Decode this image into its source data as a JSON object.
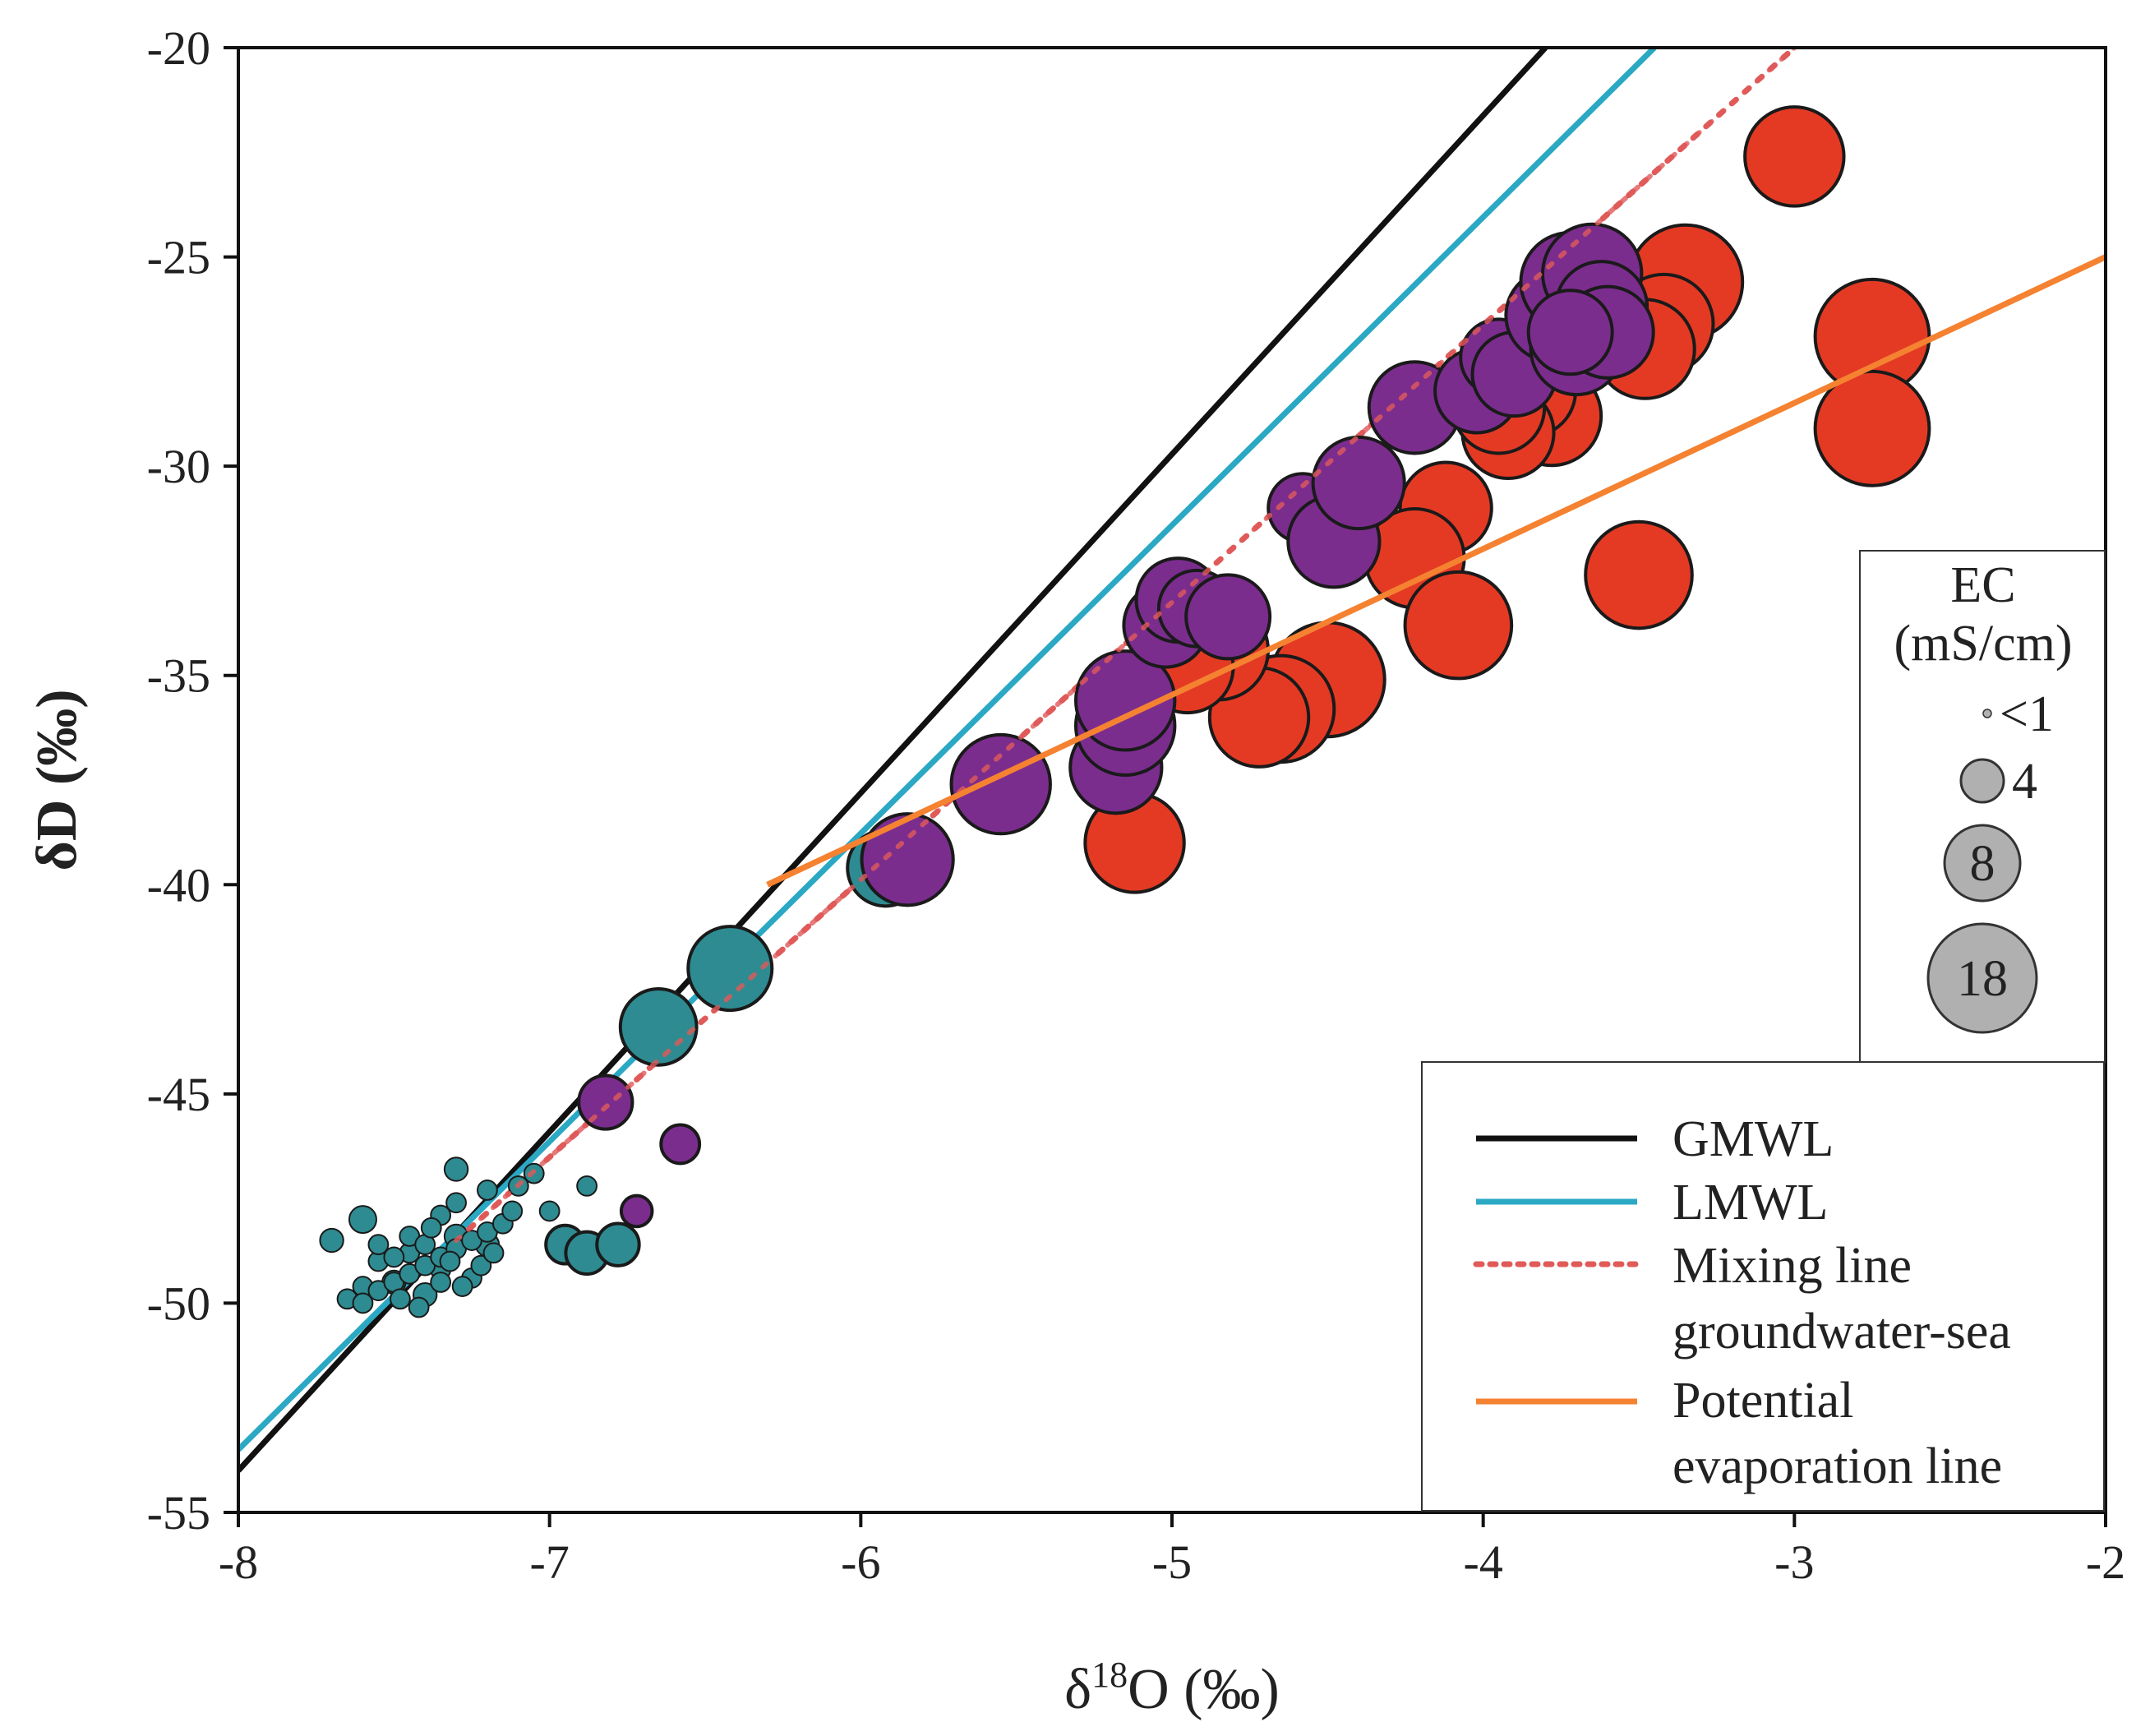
{
  "chart_data": {
    "type": "scatter",
    "xlabel": "δ18O (‰)",
    "ylabel": "δD (‰)",
    "xlim": [
      -8,
      -2
    ],
    "ylim": [
      -55,
      -20
    ],
    "x_ticks": [
      "-8",
      "-7",
      "-6",
      "-5",
      "-4",
      "-3",
      "-2"
    ],
    "y_ticks": [
      "-20",
      "-25",
      "-30",
      "-35",
      "-40",
      "-45",
      "-50",
      "-55"
    ],
    "grid": false,
    "lines": [
      {
        "name": "GMWL",
        "style": "solid",
        "color": "#111111",
        "points": [
          [
            -8,
            -54
          ],
          [
            -3.8,
            -20
          ]
        ]
      },
      {
        "name": "LMWL",
        "style": "solid",
        "color": "#2aa8c4",
        "points": [
          [
            -8,
            -53.5
          ],
          [
            -3.45,
            -20
          ]
        ]
      },
      {
        "name": "Mixing line\ngroundwater-sea",
        "style": "dotted",
        "color": "#e05a5a",
        "points": [
          [
            -7.3,
            -48.5
          ],
          [
            -3,
            -20
          ]
        ]
      },
      {
        "name": "Potential\nevaporation line",
        "style": "solid",
        "color": "#f58231",
        "points": [
          [
            -6.3,
            -40
          ],
          [
            -2,
            -25
          ]
        ]
      }
    ],
    "size_legend": {
      "title_line1": "EC",
      "title_line2": "(mS/cm)",
      "entries": [
        {
          "label": "<1",
          "size": 1
        },
        {
          "label": "4",
          "size": 4
        },
        {
          "label": "8",
          "size": 8
        },
        {
          "label": "18",
          "size": 18
        }
      ]
    },
    "series": [
      {
        "color": "#2e8b91",
        "points": [
          [
            -7.7,
            -48.5,
            2
          ],
          [
            -7.6,
            -48,
            2.5
          ],
          [
            -7.55,
            -49,
            1.5
          ],
          [
            -7.5,
            -49.5,
            2
          ],
          [
            -7.45,
            -48.8,
            1.5
          ],
          [
            -7.4,
            -49.8,
            2
          ],
          [
            -7.35,
            -49.2,
            1.5
          ],
          [
            -7.3,
            -48.4,
            2
          ],
          [
            -7.25,
            -49.4,
            1.5
          ],
          [
            -7.2,
            -48.6,
            2
          ],
          [
            -7.3,
            -46.8,
            2
          ],
          [
            -7.2,
            -47.3,
            1.5
          ],
          [
            -7.65,
            -49.9,
            1.5
          ],
          [
            -7.6,
            -49.6,
            1.5
          ],
          [
            -7.55,
            -49.7,
            1.5
          ],
          [
            -7.5,
            -49.5,
            1.5
          ],
          [
            -7.45,
            -49.3,
            1.5
          ],
          [
            -7.4,
            -49.1,
            1.5
          ],
          [
            -7.35,
            -48.9,
            1.5
          ],
          [
            -7.3,
            -48.7,
            1.5
          ],
          [
            -7.25,
            -48.5,
            1.5
          ],
          [
            -7.2,
            -48.3,
            1.5
          ],
          [
            -7.15,
            -48.1,
            1.5
          ],
          [
            -7.45,
            -48.4,
            1.5
          ],
          [
            -7.4,
            -48.6,
            1.5
          ],
          [
            -7.35,
            -47.9,
            1.5
          ],
          [
            -7.3,
            -47.6,
            1.5
          ],
          [
            -7.5,
            -48.9,
            1.5
          ],
          [
            -7.55,
            -48.6,
            1.5
          ],
          [
            -7.42,
            -50.1,
            1.5
          ],
          [
            -7.28,
            -49.6,
            1.5
          ],
          [
            -7.22,
            -49.1,
            1.5
          ],
          [
            -7.18,
            -48.8,
            1.5
          ],
          [
            -7.12,
            -47.8,
            1.5
          ],
          [
            -7.1,
            -47.2,
            1.5
          ],
          [
            -7.05,
            -46.9,
            1.5
          ],
          [
            -7.0,
            -47.8,
            1.5
          ],
          [
            -7.35,
            -49.5,
            1.5
          ],
          [
            -7.48,
            -49.9,
            1.5
          ],
          [
            -7.6,
            -50.0,
            1.5
          ],
          [
            -7.38,
            -48.2,
            1.5
          ],
          [
            -7.32,
            -49.0,
            1.5
          ],
          [
            -6.88,
            -47.2,
            1.5
          ],
          [
            -6.95,
            -48.6,
            4
          ],
          [
            -6.88,
            -48.8,
            4.5
          ],
          [
            -6.78,
            -48.6,
            4.5
          ],
          [
            -6.65,
            -43.4,
            9
          ],
          [
            -6.42,
            -42.0,
            10
          ],
          [
            -5.92,
            -39.6,
            9
          ]
        ]
      },
      {
        "color": "#7b2d8e",
        "points": [
          [
            -6.82,
            -45.2,
            6
          ],
          [
            -6.72,
            -47.8,
            3
          ],
          [
            -6.58,
            -46.2,
            4
          ],
          [
            -5.85,
            -39.4,
            11
          ],
          [
            -5.55,
            -37.6,
            12
          ],
          [
            -5.18,
            -37.2,
            11
          ],
          [
            -5.15,
            -36.2,
            12
          ],
          [
            -5.15,
            -35.6,
            12
          ],
          [
            -5.02,
            -33.8,
            10
          ],
          [
            -4.98,
            -33.2,
            10
          ],
          [
            -4.92,
            -33.4,
            9
          ],
          [
            -4.82,
            -33.6,
            10
          ],
          [
            -4.58,
            -31.0,
            8
          ],
          [
            -4.48,
            -31.8,
            11
          ],
          [
            -4.4,
            -30.4,
            11
          ],
          [
            -4.22,
            -28.6,
            11
          ],
          [
            -4.02,
            -28.2,
            10
          ],
          [
            -3.95,
            -27.4,
            9
          ],
          [
            -3.9,
            -27.8,
            10
          ],
          [
            -3.78,
            -26.4,
            11
          ],
          [
            -3.72,
            -25.6,
            12
          ],
          [
            -3.65,
            -25.4,
            12
          ],
          [
            -3.62,
            -26.2,
            11
          ],
          [
            -3.7,
            -27.2,
            11
          ],
          [
            -3.6,
            -26.8,
            11
          ],
          [
            -3.72,
            -26.8,
            10
          ]
        ]
      },
      {
        "color": "#e43a24",
        "points": [
          [
            -3.0,
            -22.6,
            12
          ],
          [
            -2.75,
            -26.9,
            14
          ],
          [
            -2.75,
            -29.1,
            14
          ],
          [
            -3.5,
            -32.6,
            13
          ],
          [
            -3.35,
            -25.6,
            14
          ],
          [
            -3.42,
            -26.6,
            12
          ],
          [
            -3.48,
            -27.2,
            12
          ],
          [
            -3.78,
            -28.8,
            12
          ],
          [
            -3.85,
            -28.2,
            11
          ],
          [
            -3.92,
            -29.2,
            11
          ],
          [
            -3.95,
            -28.6,
            11
          ],
          [
            -4.12,
            -31.0,
            11
          ],
          [
            -4.22,
            -32.2,
            12
          ],
          [
            -4.08,
            -33.8,
            13
          ],
          [
            -4.5,
            -35.1,
            14
          ],
          [
            -4.65,
            -35.8,
            13
          ],
          [
            -4.72,
            -36.0,
            12
          ],
          [
            -4.85,
            -34.4,
            12
          ],
          [
            -4.95,
            -34.8,
            11
          ],
          [
            -5.12,
            -39.0,
            12
          ]
        ]
      }
    ]
  }
}
